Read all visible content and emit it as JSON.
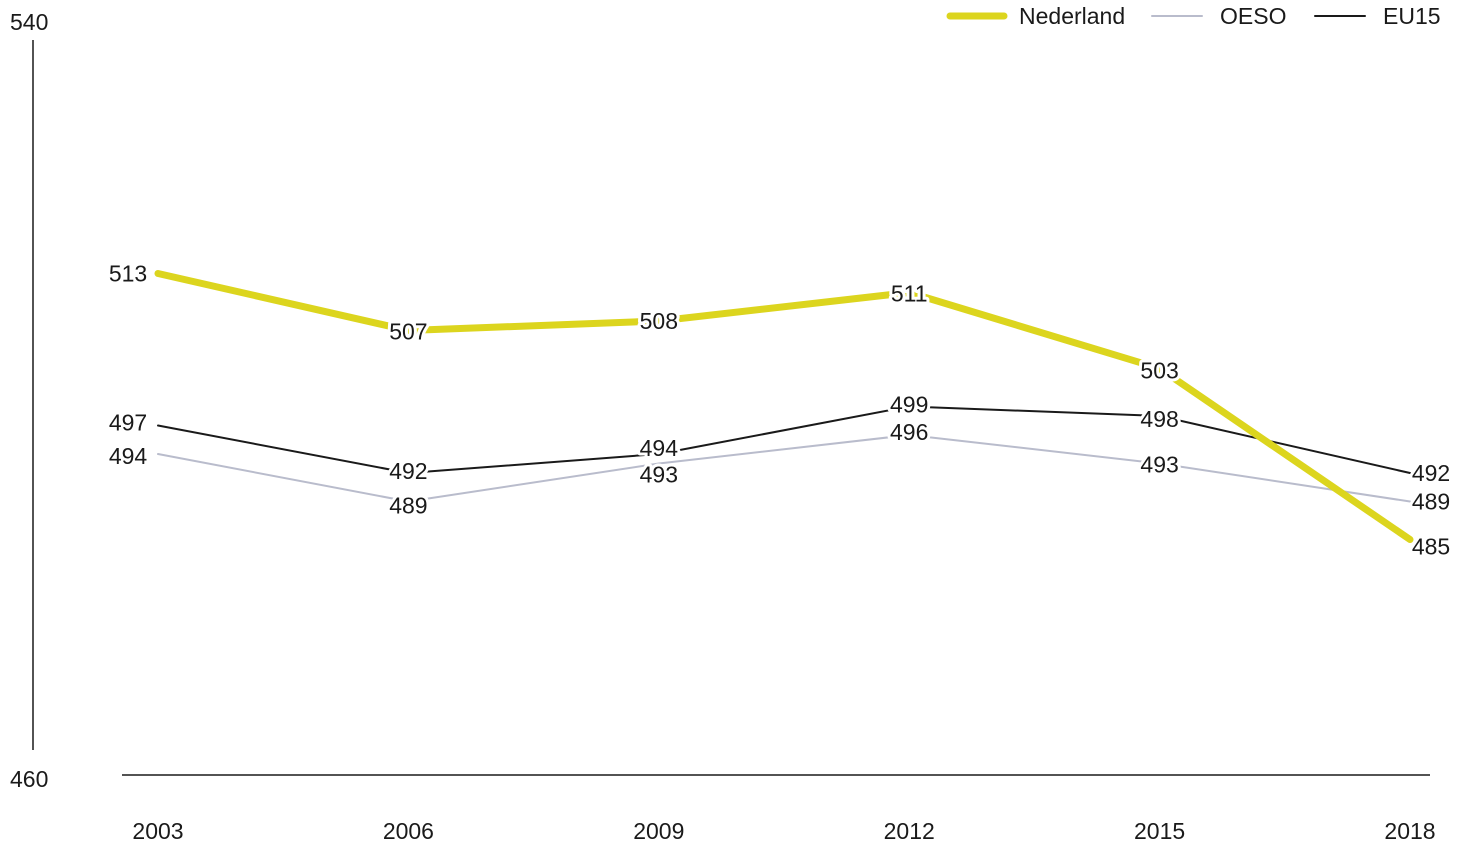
{
  "chart_data": {
    "type": "line",
    "categories": [
      "2003",
      "2006",
      "2009",
      "2012",
      "2015",
      "2018"
    ],
    "ylim": [
      460,
      540
    ],
    "y_ticks": [
      "540",
      "460"
    ],
    "grid": false,
    "legend_position": "top-right",
    "series": [
      {
        "name": "Nederland",
        "color": "#dcd51e",
        "values": [
          513,
          507,
          508,
          511,
          503,
          485
        ]
      },
      {
        "name": "OESO",
        "color": "#b9bccc",
        "values": [
          494,
          489,
          493,
          496,
          493,
          489
        ]
      },
      {
        "name": "EU15",
        "color": "#1a1a1a",
        "values": [
          497,
          492,
          494,
          499,
          498,
          492
        ]
      }
    ]
  }
}
